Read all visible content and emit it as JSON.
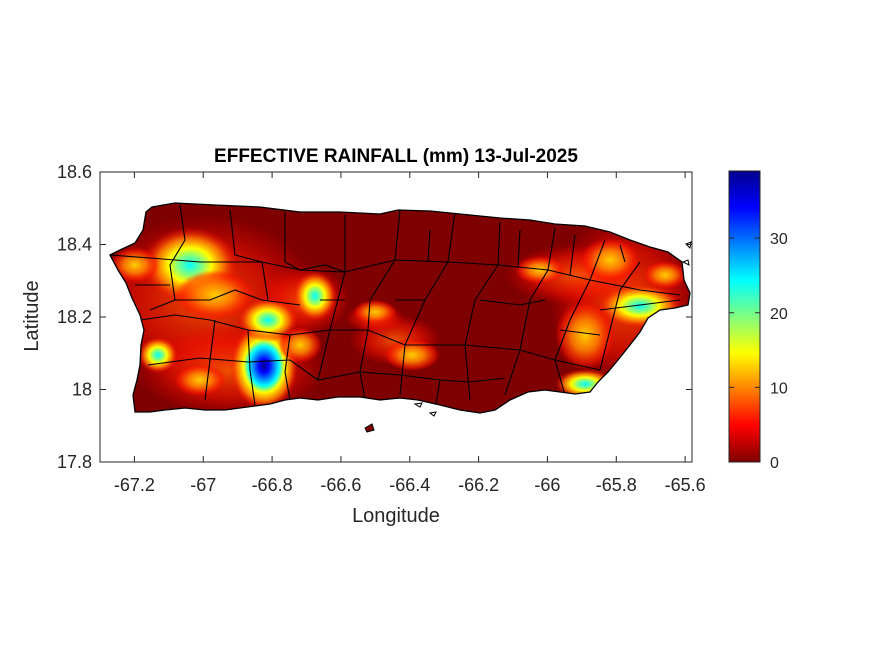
{
  "title": "EFFECTIVE RAINFALL (mm) 13-Jul-2025",
  "xlabel": "Longitude",
  "ylabel": "Latitude",
  "x_ticks": [
    "-67.2",
    "-67",
    "-66.8",
    "-66.6",
    "-66.4",
    "-66.2",
    "-66",
    "-65.8",
    "-65.6"
  ],
  "y_ticks": [
    "18.6",
    "18.4",
    "18.2",
    "18",
    "17.8"
  ],
  "colorbar": {
    "colormap": "jet",
    "min": 0,
    "max": 39,
    "ticks": [
      "30",
      "20",
      "10",
      "0"
    ],
    "colors": [
      "#7f0000",
      "#ff0000",
      "#ff8000",
      "#ffff00",
      "#80ff80",
      "#00ffff",
      "#0080ff",
      "#0000ff",
      "#00008f"
    ]
  },
  "map": {
    "region": "Puerto Rico",
    "background_value_color": "#7f0000",
    "xlim": [
      -67.3,
      -65.58
    ],
    "ylim": [
      17.8,
      18.6
    ]
  },
  "hotspots": [
    {
      "lon": -67.1,
      "lat": 18.35,
      "peak_mm": 24
    },
    {
      "lon": -66.83,
      "lat": 18.06,
      "peak_mm": 38
    },
    {
      "lon": -66.69,
      "lat": 18.25,
      "peak_mm": 24
    },
    {
      "lon": -65.73,
      "lat": 18.22,
      "peak_mm": 22
    },
    {
      "lon": -67.15,
      "lat": 18.09,
      "peak_mm": 20
    },
    {
      "lon": -65.93,
      "lat": 18.01,
      "peak_mm": 18
    },
    {
      "lon": -66.35,
      "lat": 18.09,
      "peak_mm": 11
    }
  ]
}
